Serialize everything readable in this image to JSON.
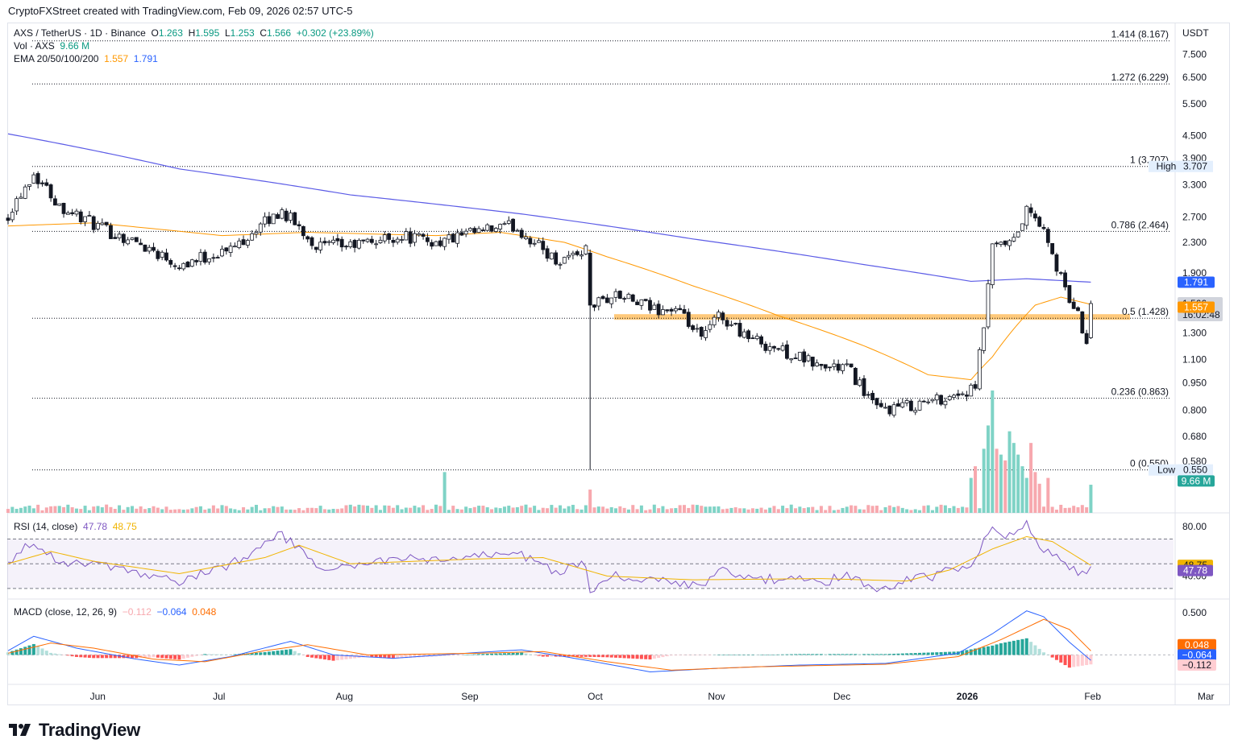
{
  "header": {
    "credit": "CryptoFXStreet created with TradingView.com, Feb 09, 2026 02:57 UTC-5"
  },
  "legend": {
    "symbol": "AXS / TetherUS · 1D · Binance",
    "open_label": "O",
    "open": "1.263",
    "high_label": "H",
    "high": "1.595",
    "low_label": "L",
    "low": "1.253",
    "close_label": "C",
    "close": "1.566",
    "change": "+0.302 (+23.89%)",
    "vol_label": "Vol · AXS",
    "vol": "9.66 M",
    "ema_label": "EMA 20/50/100/200",
    "ema50": "1.557",
    "ema200": "1.791"
  },
  "rsi_legend": {
    "label": "RSI (14, close)",
    "rsi": "47.78",
    "ma": "48.75"
  },
  "macd_legend": {
    "label": "MACD (close, 12, 26, 9)",
    "hist": "−0.112",
    "macd": "−0.064",
    "signal": "0.048"
  },
  "brand": {
    "name": "TradingView"
  },
  "colors": {
    "up": "#089981",
    "down": "#f23645",
    "ema50": "#ff9800",
    "ema200": "#5b5be6",
    "rsi": "#7e57c2",
    "rsi_ma": "#f0b400",
    "macd": "#2962ff",
    "signal": "#ff6d00",
    "zone": "#ffb74d"
  },
  "chart_data": {
    "type": "candlestick",
    "pair": "AXS/USDT",
    "interval": "1D",
    "scale": "log",
    "price_axis": {
      "currency": "USDT",
      "ticks": [
        "7.500",
        "6.500",
        "5.500",
        "4.500",
        "3.900",
        "3.300",
        "2.700",
        "2.300",
        "1.900",
        "1.300",
        "1.100",
        "0.950",
        "0.800",
        "0.680",
        "0.580"
      ],
      "ylim": [
        0.5,
        8.6
      ]
    },
    "time_axis": {
      "labels": [
        "Jun",
        "Jul",
        "Aug",
        "Sep",
        "Oct",
        "Nov",
        "Dec",
        "2026",
        "Feb",
        "Mar"
      ],
      "bold": "2026"
    },
    "fibonacci": [
      {
        "level": "1.414",
        "price": 8.167,
        "label": "1.414 (8.167)"
      },
      {
        "level": "1.272",
        "price": 6.229,
        "label": "1.272 (6.229)"
      },
      {
        "level": "1",
        "price": 3.707,
        "label": "1 (3.707)"
      },
      {
        "level": "0.786",
        "price": 2.464,
        "label": "0.786 (2.464)"
      },
      {
        "level": "0.5",
        "price": 1.428,
        "label": "0.5 (1.428)"
      },
      {
        "level": "0.236",
        "price": 0.863,
        "label": "0.236 (0.863)"
      },
      {
        "level": "0",
        "price": 0.55,
        "label": "0 (0.550)"
      }
    ],
    "support_zone": {
      "price": 1.428
    },
    "badges": [
      {
        "tag": "High",
        "value": "3.707",
        "price": 3.707,
        "kind": "hl"
      },
      {
        "tag": "",
        "value": "1.791",
        "price": 1.791,
        "kind": "ema200"
      },
      {
        "tag": "",
        "value": "1.566",
        "sub": "16:02:48",
        "price": 1.566,
        "kind": "last"
      },
      {
        "tag": "",
        "value": "1.557",
        "price": 1.53,
        "kind": "ema50"
      },
      {
        "tag": "Low",
        "value": "0.550",
        "price": 0.55,
        "kind": "hl"
      },
      {
        "tag": "",
        "value": "9.66 M",
        "price": 0.513,
        "kind": "vol"
      }
    ],
    "anchors": [
      {
        "day": 0,
        "price": 2.75
      },
      {
        "day": 6,
        "price": 3.55
      },
      {
        "day": 12,
        "price": 2.9
      },
      {
        "day": 22,
        "price": 2.5
      },
      {
        "day": 32,
        "price": 2.25
      },
      {
        "day": 40,
        "price": 2.0
      },
      {
        "day": 52,
        "price": 2.2
      },
      {
        "day": 64,
        "price": 2.8
      },
      {
        "day": 72,
        "price": 2.25
      },
      {
        "day": 80,
        "price": 2.25
      },
      {
        "day": 92,
        "price": 2.4
      },
      {
        "day": 100,
        "price": 2.3
      },
      {
        "day": 110,
        "price": 2.45
      },
      {
        "day": 118,
        "price": 2.55
      },
      {
        "day": 128,
        "price": 2.05
      },
      {
        "day": 135,
        "price": 2.2
      },
      {
        "day": 136,
        "price": 1.55
      },
      {
        "day": 142,
        "price": 1.65
      },
      {
        "day": 150,
        "price": 1.52
      },
      {
        "day": 156,
        "price": 1.5
      },
      {
        "day": 162,
        "price": 1.25
      },
      {
        "day": 166,
        "price": 1.45
      },
      {
        "day": 174,
        "price": 1.25
      },
      {
        "day": 182,
        "price": 1.15
      },
      {
        "day": 190,
        "price": 1.05
      },
      {
        "day": 196,
        "price": 1.05
      },
      {
        "day": 203,
        "price": 0.8
      },
      {
        "day": 212,
        "price": 0.83
      },
      {
        "day": 216,
        "price": 0.85
      },
      {
        "day": 226,
        "price": 0.91
      },
      {
        "day": 228,
        "price": 1.35
      },
      {
        "day": 230,
        "price": 2.2
      },
      {
        "day": 235,
        "price": 2.3
      },
      {
        "day": 238,
        "price": 2.8
      },
      {
        "day": 241,
        "price": 2.6
      },
      {
        "day": 244,
        "price": 2.1
      },
      {
        "day": 247,
        "price": 1.7
      },
      {
        "day": 250,
        "price": 1.45
      },
      {
        "day": 252,
        "price": 1.26
      },
      {
        "day": 253,
        "price": 1.566
      }
    ],
    "special_candles": [
      {
        "day": 136,
        "open": 2.15,
        "high": 2.2,
        "low": 0.55,
        "close": 1.55
      },
      {
        "day": 253,
        "open": 1.263,
        "high": 1.595,
        "low": 1.253,
        "close": 1.566
      }
    ],
    "ema50_anchors": [
      {
        "day": 0,
        "price": 2.55
      },
      {
        "day": 20,
        "price": 2.6
      },
      {
        "day": 50,
        "price": 2.4
      },
      {
        "day": 70,
        "price": 2.45
      },
      {
        "day": 100,
        "price": 2.4
      },
      {
        "day": 115,
        "price": 2.45
      },
      {
        "day": 130,
        "price": 2.3
      },
      {
        "day": 140,
        "price": 2.1
      },
      {
        "day": 160,
        "price": 1.75
      },
      {
        "day": 180,
        "price": 1.45
      },
      {
        "day": 200,
        "price": 1.2
      },
      {
        "day": 215,
        "price": 1.0
      },
      {
        "day": 225,
        "price": 0.97
      },
      {
        "day": 230,
        "price": 1.12
      },
      {
        "day": 240,
        "price": 1.55
      },
      {
        "day": 246,
        "price": 1.63
      },
      {
        "day": 253,
        "price": 1.557
      }
    ],
    "ema200_anchors": [
      {
        "day": 0,
        "price": 4.55
      },
      {
        "day": 40,
        "price": 3.65
      },
      {
        "day": 80,
        "price": 3.1
      },
      {
        "day": 120,
        "price": 2.75
      },
      {
        "day": 160,
        "price": 2.35
      },
      {
        "day": 200,
        "price": 2.0
      },
      {
        "day": 225,
        "price": 1.8
      },
      {
        "day": 238,
        "price": 1.83
      },
      {
        "day": 253,
        "price": 1.791
      }
    ],
    "volume": {
      "spikes": [
        {
          "day": 102,
          "value": 14
        },
        {
          "day": 136,
          "value": 8
        },
        {
          "day": 225,
          "value": 12
        },
        {
          "day": 226,
          "value": 16
        },
        {
          "day": 228,
          "value": 22
        },
        {
          "day": 229,
          "value": 30
        },
        {
          "day": 230,
          "value": 42
        },
        {
          "day": 231,
          "value": 22
        },
        {
          "day": 232,
          "value": 20
        },
        {
          "day": 233,
          "value": 18
        },
        {
          "day": 234,
          "value": 28
        },
        {
          "day": 235,
          "value": 24
        },
        {
          "day": 236,
          "value": 20
        },
        {
          "day": 237,
          "value": 16
        },
        {
          "day": 238,
          "value": 12
        },
        {
          "day": 239,
          "value": 24
        },
        {
          "day": 240,
          "value": 14
        },
        {
          "day": 241,
          "value": 10
        },
        {
          "day": 243,
          "value": 12
        },
        {
          "day": 253,
          "value": 9.66
        }
      ],
      "base": 2.2
    },
    "rsi": {
      "ticks": [
        "80.00",
        "40.00"
      ],
      "bands": [
        30,
        50,
        70
      ],
      "ylim": [
        26,
        86
      ],
      "anchors": [
        {
          "day": 0,
          "value": 52
        },
        {
          "day": 6,
          "value": 68
        },
        {
          "day": 12,
          "value": 52
        },
        {
          "day": 22,
          "value": 48
        },
        {
          "day": 32,
          "value": 40
        },
        {
          "day": 40,
          "value": 35
        },
        {
          "day": 52,
          "value": 50
        },
        {
          "day": 64,
          "value": 74
        },
        {
          "day": 72,
          "value": 47
        },
        {
          "day": 80,
          "value": 47
        },
        {
          "day": 92,
          "value": 55
        },
        {
          "day": 100,
          "value": 52
        },
        {
          "day": 110,
          "value": 56
        },
        {
          "day": 118,
          "value": 60
        },
        {
          "day": 128,
          "value": 44
        },
        {
          "day": 135,
          "value": 50
        },
        {
          "day": 136,
          "value": 30
        },
        {
          "day": 142,
          "value": 40
        },
        {
          "day": 150,
          "value": 37
        },
        {
          "day": 156,
          "value": 36
        },
        {
          "day": 162,
          "value": 30
        },
        {
          "day": 166,
          "value": 45
        },
        {
          "day": 174,
          "value": 37
        },
        {
          "day": 182,
          "value": 38
        },
        {
          "day": 190,
          "value": 35
        },
        {
          "day": 196,
          "value": 40
        },
        {
          "day": 203,
          "value": 30
        },
        {
          "day": 212,
          "value": 38
        },
        {
          "day": 216,
          "value": 40
        },
        {
          "day": 226,
          "value": 52
        },
        {
          "day": 228,
          "value": 72
        },
        {
          "day": 230,
          "value": 80
        },
        {
          "day": 235,
          "value": 70
        },
        {
          "day": 238,
          "value": 82
        },
        {
          "day": 241,
          "value": 65
        },
        {
          "day": 244,
          "value": 56
        },
        {
          "day": 247,
          "value": 50
        },
        {
          "day": 250,
          "value": 44
        },
        {
          "day": 252,
          "value": 40
        },
        {
          "day": 253,
          "value": 47.78
        }
      ],
      "ma_anchors": [
        {
          "day": 0,
          "value": 50
        },
        {
          "day": 10,
          "value": 60
        },
        {
          "day": 20,
          "value": 52
        },
        {
          "day": 40,
          "value": 42
        },
        {
          "day": 60,
          "value": 55
        },
        {
          "day": 68,
          "value": 65
        },
        {
          "day": 80,
          "value": 50
        },
        {
          "day": 110,
          "value": 54
        },
        {
          "day": 125,
          "value": 55
        },
        {
          "day": 140,
          "value": 40
        },
        {
          "day": 160,
          "value": 37
        },
        {
          "day": 190,
          "value": 38
        },
        {
          "day": 210,
          "value": 36
        },
        {
          "day": 220,
          "value": 45
        },
        {
          "day": 230,
          "value": 62
        },
        {
          "day": 238,
          "value": 72
        },
        {
          "day": 244,
          "value": 68
        },
        {
          "day": 253,
          "value": 48.75
        }
      ]
    },
    "macd": {
      "ticks": [
        "0.500"
      ],
      "ylim": [
        -0.3,
        0.65
      ],
      "macd_anchors": [
        {
          "day": 0,
          "value": 0.05
        },
        {
          "day": 6,
          "value": 0.22
        },
        {
          "day": 16,
          "value": 0.08
        },
        {
          "day": 30,
          "value": -0.05
        },
        {
          "day": 40,
          "value": -0.12
        },
        {
          "day": 52,
          "value": -0.02
        },
        {
          "day": 66,
          "value": 0.16
        },
        {
          "day": 76,
          "value": 0.0
        },
        {
          "day": 90,
          "value": -0.04
        },
        {
          "day": 110,
          "value": 0.03
        },
        {
          "day": 120,
          "value": 0.06
        },
        {
          "day": 130,
          "value": -0.02
        },
        {
          "day": 137,
          "value": -0.08
        },
        {
          "day": 150,
          "value": -0.2
        },
        {
          "day": 165,
          "value": -0.16
        },
        {
          "day": 185,
          "value": -0.12
        },
        {
          "day": 205,
          "value": -0.1
        },
        {
          "day": 222,
          "value": 0.02
        },
        {
          "day": 230,
          "value": 0.25
        },
        {
          "day": 238,
          "value": 0.52
        },
        {
          "day": 242,
          "value": 0.45
        },
        {
          "day": 248,
          "value": 0.15
        },
        {
          "day": 253,
          "value": -0.064
        }
      ],
      "signal_anchors": [
        {
          "day": 0,
          "value": 0.02
        },
        {
          "day": 10,
          "value": 0.14
        },
        {
          "day": 20,
          "value": 0.08
        },
        {
          "day": 34,
          "value": -0.05
        },
        {
          "day": 46,
          "value": -0.08
        },
        {
          "day": 60,
          "value": 0.05
        },
        {
          "day": 70,
          "value": 0.12
        },
        {
          "day": 84,
          "value": 0.0
        },
        {
          "day": 110,
          "value": 0.02
        },
        {
          "day": 125,
          "value": 0.04
        },
        {
          "day": 140,
          "value": -0.08
        },
        {
          "day": 155,
          "value": -0.18
        },
        {
          "day": 175,
          "value": -0.14
        },
        {
          "day": 205,
          "value": -0.11
        },
        {
          "day": 222,
          "value": -0.02
        },
        {
          "day": 232,
          "value": 0.18
        },
        {
          "day": 242,
          "value": 0.42
        },
        {
          "day": 248,
          "value": 0.3
        },
        {
          "day": 253,
          "value": 0.048
        }
      ]
    }
  }
}
